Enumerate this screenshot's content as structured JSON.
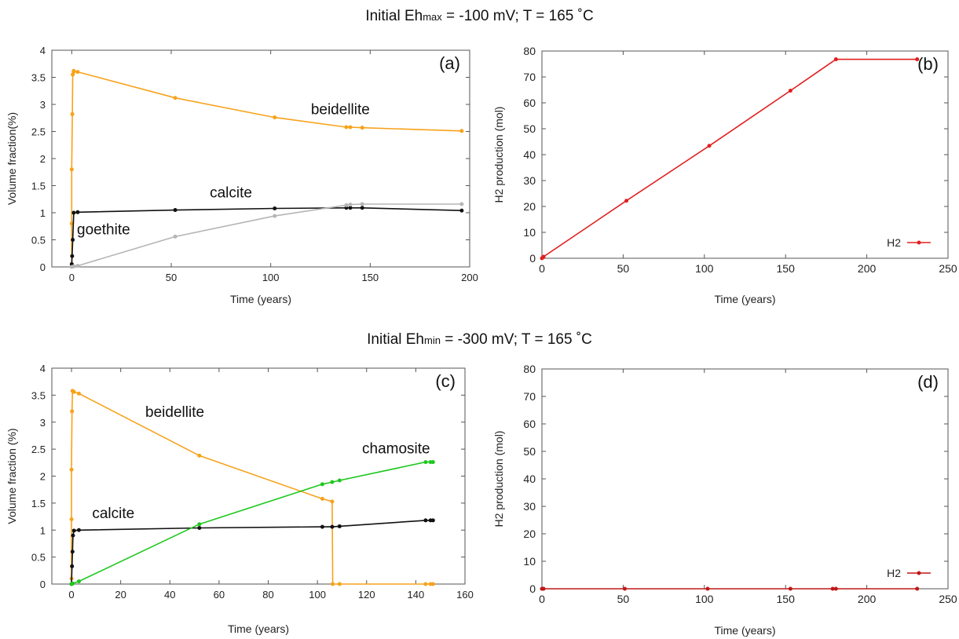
{
  "headings": {
    "top": {
      "prefix": "Initial Eh",
      "sub": "max",
      "suffix": " = -100 mV; T = 165 ˚C"
    },
    "bottom": {
      "prefix": "Initial Eh",
      "sub": "min",
      "suffix": " = -300 mV; T = 165 ˚C"
    }
  },
  "chart_data": [
    {
      "id": "a",
      "type": "line",
      "panel_label": "(a)",
      "xlabel": "Time (years)",
      "ylabel": "Volume fraction(%)",
      "xlim": [
        -10,
        200
      ],
      "ylim": [
        0,
        4
      ],
      "xticks": [
        0,
        50,
        100,
        150,
        200
      ],
      "yticks": [
        0,
        0.5,
        1,
        1.5,
        2,
        2.5,
        3,
        3.5,
        4
      ],
      "ytick_labels": [
        "0",
        "0.5",
        "1",
        "1.5",
        "2",
        "2.5",
        "3",
        "3.5",
        "4"
      ],
      "grid": false,
      "series": [
        {
          "name": "beidellite",
          "color": "#f7a21b",
          "x": [
            0,
            0,
            0,
            0.3,
            0.5,
            1,
            1,
            3,
            52,
            102,
            138,
            140,
            146,
            196
          ],
          "y": [
            0.05,
            0.8,
            1.8,
            2.82,
            3.55,
            3.6,
            3.62,
            3.6,
            3.12,
            2.76,
            2.58,
            2.58,
            2.57,
            2.51
          ]
        },
        {
          "name": "calcite",
          "color": "#111111",
          "x": [
            0,
            0.2,
            0.5,
            1,
            3,
            52,
            102,
            138,
            140,
            146,
            196
          ],
          "y": [
            0.05,
            0.2,
            0.5,
            1.0,
            1.01,
            1.05,
            1.08,
            1.09,
            1.09,
            1.09,
            1.04
          ]
        },
        {
          "name": "goethite",
          "color": "#b5b5b5",
          "x": [
            0,
            1,
            3,
            52,
            102,
            138,
            140,
            146,
            196
          ],
          "y": [
            0.0,
            0.01,
            0.02,
            0.56,
            0.94,
            1.14,
            1.15,
            1.16,
            1.16
          ]
        }
      ],
      "annotations": [
        {
          "text": "beidellite",
          "x": 135,
          "y": 2.82
        },
        {
          "text": "calcite",
          "x": 80,
          "y": 1.28
        },
        {
          "text": "goethite",
          "x": 16,
          "y": 0.6
        }
      ]
    },
    {
      "id": "b",
      "type": "line",
      "panel_label": "(b)",
      "xlabel": "Time (years)",
      "ylabel": "H2 production (mol)",
      "xlim": [
        0,
        250
      ],
      "ylim": [
        0,
        80
      ],
      "xticks": [
        0,
        50,
        100,
        150,
        200,
        250
      ],
      "yticks": [
        0,
        10,
        20,
        30,
        40,
        50,
        60,
        70,
        80
      ],
      "grid": false,
      "legend": "bottom-right",
      "series": [
        {
          "name": "H2",
          "color": "#e02020",
          "x": [
            0,
            0.5,
            1,
            52,
            103,
            153,
            181,
            231
          ],
          "y": [
            0,
            0.3,
            0.6,
            22.2,
            43.4,
            64.7,
            76.8,
            76.8
          ]
        }
      ]
    },
    {
      "id": "c",
      "type": "line",
      "panel_label": "(c)",
      "xlabel": "Time (years)",
      "ylabel": "Volume fraction (%)",
      "xlim": [
        -8,
        160
      ],
      "ylim": [
        0,
        4
      ],
      "xticks": [
        0,
        20,
        40,
        60,
        80,
        100,
        120,
        140,
        160
      ],
      "yticks": [
        0,
        0.5,
        1,
        1.5,
        2,
        2.5,
        3,
        3.5,
        4
      ],
      "ytick_labels": [
        "0",
        "0.5",
        "1",
        "1.5",
        "2",
        "2.5",
        "3",
        "3.5",
        "4"
      ],
      "grid": false,
      "series": [
        {
          "name": "beidellite",
          "color": "#f7a21b",
          "x": [
            0,
            0,
            0,
            0.2,
            0.4,
            0.6,
            1,
            3,
            52,
            102,
            106,
            106.2,
            109,
            144,
            146,
            147
          ],
          "y": [
            0.1,
            1.2,
            2.12,
            3.2,
            3.58,
            3.57,
            3.56,
            3.53,
            2.38,
            1.58,
            1.53,
            0.0,
            0.0,
            0.0,
            0.0,
            0.0
          ]
        },
        {
          "name": "calcite",
          "color": "#111111",
          "x": [
            0,
            0.2,
            0.4,
            0.6,
            1,
            3,
            52,
            102,
            106,
            109,
            144,
            146,
            147
          ],
          "y": [
            0.0,
            0.33,
            0.6,
            0.9,
            0.99,
            1.0,
            1.04,
            1.06,
            1.06,
            1.07,
            1.18,
            1.18,
            1.18
          ]
        },
        {
          "name": "chamosite",
          "color": "#1ec81e",
          "x": [
            0,
            0.5,
            3,
            52,
            102,
            106,
            109,
            144,
            146,
            147
          ],
          "y": [
            0.0,
            0.01,
            0.05,
            1.11,
            1.85,
            1.89,
            1.92,
            2.26,
            2.26,
            2.26
          ]
        }
      ],
      "annotations": [
        {
          "text": "beidellite",
          "x": 42,
          "y": 3.1
        },
        {
          "text": "calcite",
          "x": 17,
          "y": 1.22
        },
        {
          "text": "chamosite",
          "x": 132,
          "y": 2.42
        }
      ]
    },
    {
      "id": "d",
      "type": "line",
      "panel_label": "(d)",
      "xlabel": "Time (years)",
      "ylabel": "H2 production (mol)",
      "xlim": [
        0,
        250
      ],
      "ylim": [
        0,
        80
      ],
      "xticks": [
        0,
        50,
        100,
        150,
        200,
        250
      ],
      "yticks": [
        0,
        10,
        20,
        30,
        40,
        50,
        60,
        70,
        80
      ],
      "grid": false,
      "legend": "bottom-right",
      "series": [
        {
          "name": "H2",
          "color": "#c01818",
          "x": [
            0,
            0.5,
            1,
            51,
            102,
            153,
            179,
            181,
            231
          ],
          "y": [
            0,
            0,
            0,
            0,
            0,
            0,
            0,
            0,
            0
          ]
        }
      ]
    }
  ]
}
